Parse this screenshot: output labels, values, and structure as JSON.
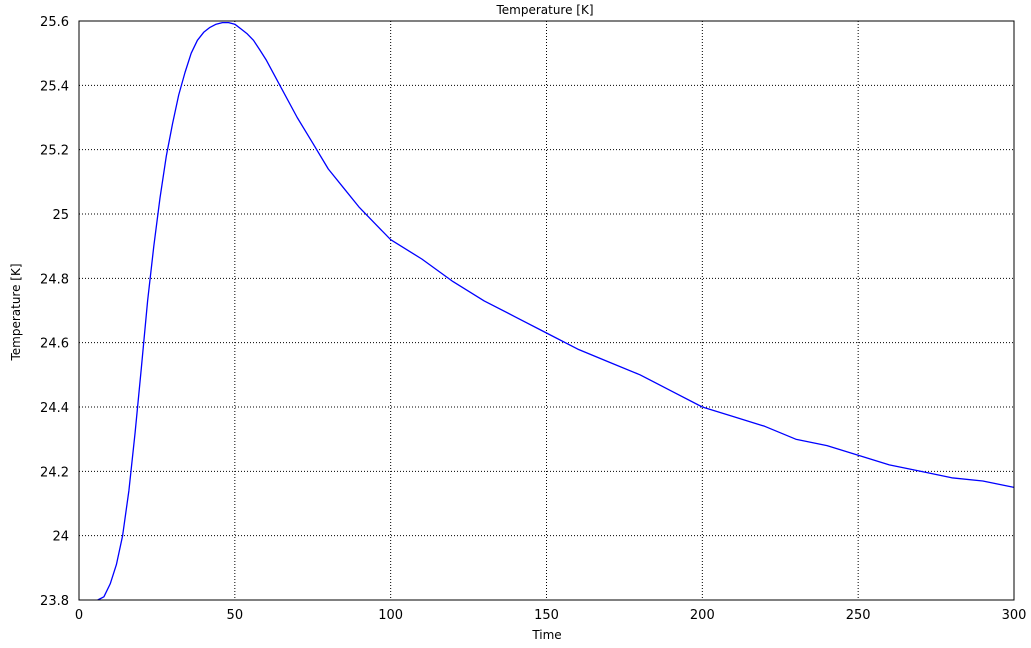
{
  "chart_data": {
    "type": "line",
    "title": "Temperature [K]",
    "xlabel": "Time",
    "ylabel": "Temperature [K]",
    "xlim": [
      0,
      300
    ],
    "ylim": [
      23.8,
      25.6
    ],
    "xticks": [
      0,
      50,
      100,
      150,
      200,
      250,
      300
    ],
    "xtick_labels": [
      "0",
      "50",
      "100",
      "150",
      "200",
      "250",
      "300"
    ],
    "yticks": [
      23.8,
      24.0,
      24.2,
      24.4,
      24.6,
      24.8,
      25.0,
      25.2,
      25.4,
      25.6
    ],
    "ytick_labels": [
      "23.8",
      "24",
      "24.2",
      "24.4",
      "24.6",
      "24.8",
      "25",
      "25.2",
      "25.4",
      "25.6"
    ],
    "grid": true,
    "grid_style": "dotted",
    "line_color": "#0000ff",
    "series": [
      {
        "x": [
          6,
          8,
          10,
          12,
          14,
          16,
          18,
          20,
          22,
          24,
          26,
          28,
          30,
          32,
          34,
          36,
          38,
          40,
          42,
          44,
          46,
          48,
          50,
          52,
          54,
          56,
          58,
          60,
          65,
          70,
          75,
          80,
          85,
          90,
          95,
          100,
          110,
          120,
          130,
          140,
          150,
          160,
          170,
          180,
          190,
          200,
          210,
          220,
          230,
          240,
          250,
          260,
          270,
          280,
          290,
          300
        ],
        "y": [
          23.8,
          23.81,
          23.85,
          23.91,
          24.0,
          24.14,
          24.32,
          24.52,
          24.73,
          24.9,
          25.05,
          25.18,
          25.28,
          25.37,
          25.44,
          25.5,
          25.54,
          25.565,
          25.58,
          25.59,
          25.595,
          25.595,
          25.59,
          25.575,
          25.56,
          25.54,
          25.51,
          25.48,
          25.39,
          25.3,
          25.22,
          25.14,
          25.08,
          25.02,
          24.97,
          24.92,
          24.86,
          24.79,
          24.73,
          24.68,
          24.63,
          24.58,
          24.54,
          24.5,
          24.45,
          24.4,
          24.37,
          24.34,
          24.3,
          24.28,
          24.25,
          24.22,
          24.2,
          24.18,
          24.17,
          24.15
        ]
      }
    ]
  }
}
